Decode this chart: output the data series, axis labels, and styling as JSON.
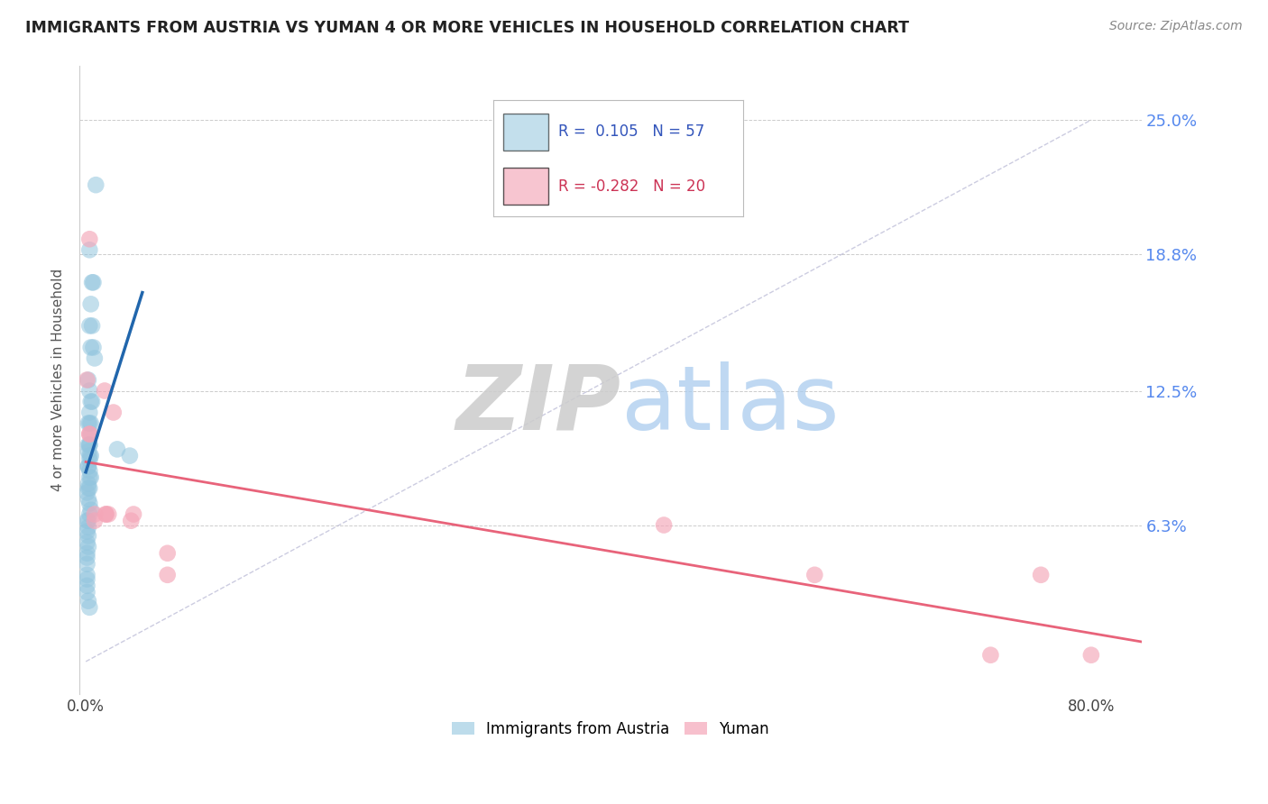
{
  "title": "IMMIGRANTS FROM AUSTRIA VS YUMAN 4 OR MORE VEHICLES IN HOUSEHOLD CORRELATION CHART",
  "source": "Source: ZipAtlas.com",
  "ylabel": "4 or more Vehicles in Household",
  "yticks": [
    0.0,
    0.063,
    0.125,
    0.188,
    0.25
  ],
  "ytick_labels": [
    "",
    "6.3%",
    "12.5%",
    "18.8%",
    "25.0%"
  ],
  "legend1_label": "Immigrants from Austria",
  "legend2_label": "Yuman",
  "R1": 0.105,
  "N1": 57,
  "R2": -0.282,
  "N2": 20,
  "blue_color": "#92c5de",
  "pink_color": "#f4a6b8",
  "blue_line_color": "#2166ac",
  "pink_line_color": "#e8637a",
  "blue_scatter_x": [
    0.008,
    0.003,
    0.005,
    0.006,
    0.004,
    0.005,
    0.003,
    0.004,
    0.006,
    0.007,
    0.002,
    0.003,
    0.004,
    0.005,
    0.003,
    0.004,
    0.002,
    0.003,
    0.004,
    0.003,
    0.002,
    0.003,
    0.002,
    0.003,
    0.004,
    0.003,
    0.002,
    0.002,
    0.003,
    0.004,
    0.003,
    0.002,
    0.003,
    0.002,
    0.001,
    0.002,
    0.003,
    0.004,
    0.003,
    0.002,
    0.001,
    0.002,
    0.001,
    0.002,
    0.001,
    0.002,
    0.001,
    0.001,
    0.001,
    0.001,
    0.001,
    0.001,
    0.001,
    0.002,
    0.003,
    0.035,
    0.025
  ],
  "blue_scatter_y": [
    0.22,
    0.19,
    0.175,
    0.175,
    0.165,
    0.155,
    0.155,
    0.145,
    0.145,
    0.14,
    0.13,
    0.125,
    0.12,
    0.12,
    0.115,
    0.11,
    0.11,
    0.11,
    0.105,
    0.1,
    0.1,
    0.1,
    0.097,
    0.095,
    0.095,
    0.093,
    0.09,
    0.09,
    0.088,
    0.085,
    0.085,
    0.082,
    0.08,
    0.08,
    0.078,
    0.075,
    0.073,
    0.07,
    0.068,
    0.065,
    0.065,
    0.062,
    0.06,
    0.058,
    0.055,
    0.053,
    0.05,
    0.048,
    0.045,
    0.04,
    0.038,
    0.035,
    0.032,
    0.028,
    0.025,
    0.095,
    0.098
  ],
  "pink_scatter_x": [
    0.003,
    0.001,
    0.015,
    0.016,
    0.016,
    0.018,
    0.022,
    0.007,
    0.007,
    0.003,
    0.003,
    0.036,
    0.038,
    0.065,
    0.065,
    0.46,
    0.58,
    0.72,
    0.76,
    0.8
  ],
  "pink_scatter_y": [
    0.195,
    0.13,
    0.125,
    0.068,
    0.068,
    0.068,
    0.115,
    0.065,
    0.068,
    0.105,
    0.105,
    0.065,
    0.068,
    0.05,
    0.04,
    0.063,
    0.04,
    0.003,
    0.04,
    0.003
  ],
  "xlim": [
    -0.005,
    0.84
  ],
  "ylim": [
    -0.015,
    0.275
  ],
  "xtick_positions": [
    0.0,
    0.1,
    0.2,
    0.3,
    0.4,
    0.5,
    0.6,
    0.7,
    0.8
  ]
}
